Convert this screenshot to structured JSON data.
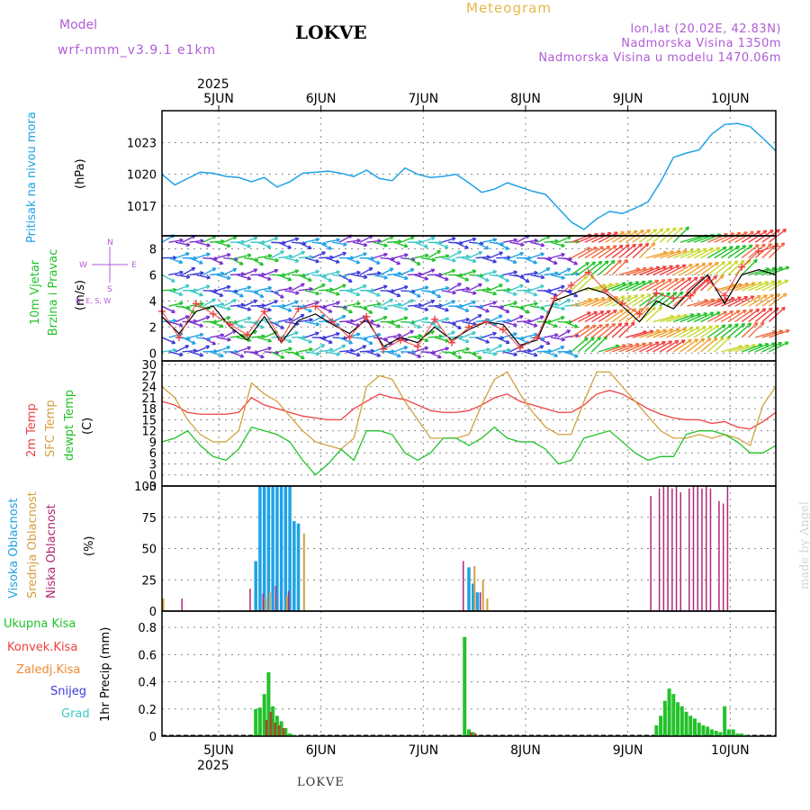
{
  "header": {
    "model_label": "Model",
    "model_value": "wrf-nmm_v3.9.1 e1km",
    "station": "LOKVE",
    "meteogram": "Meteogram",
    "coords": "lon,lat (20.02E, 42.83N)",
    "elevation": "Nadmorska Visina 1350m",
    "model_elevation": "Nadmorska Visina u modelu 1470.06m"
  },
  "footer": {
    "station": "LOKVE",
    "credit": "made by Angel"
  },
  "colors": {
    "purple": "#b05cd6",
    "blue": "#1ea2e6",
    "green": "#22c22a",
    "red": "#ee4040",
    "orange": "#f08a32",
    "tan": "#d4a040",
    "magenta": "#b0287a",
    "indigo": "#3b3bdc",
    "cyan": "#3cc8c8",
    "black": "#000000"
  },
  "chart_data": [
    {
      "type": "line",
      "panel": "pressure",
      "title": "Pritisak na nivou mora",
      "ylabel": "(hPa)",
      "x_top_labels": [
        "5JUN",
        "6JUN",
        "7JUN",
        "8JUN",
        "9JUN",
        "10JUN"
      ],
      "x_year": "2025",
      "yticks": [
        "1023",
        "1020",
        "1017"
      ],
      "ylim": [
        1014.2,
        1026
      ],
      "x": [
        0,
        3,
        6,
        9,
        12,
        15,
        18,
        21,
        24,
        27,
        30,
        33,
        36,
        39,
        42,
        45,
        48,
        51,
        54,
        57,
        60,
        63,
        66,
        69,
        72,
        75,
        78,
        81,
        84,
        87,
        90,
        93,
        96,
        99,
        102,
        105,
        108,
        111,
        114,
        117,
        120,
        123,
        126,
        129,
        132,
        135,
        138,
        141,
        144
      ],
      "series": [
        {
          "name": "Pritisak na nivou mora",
          "values": [
            1020,
            1019,
            1019.6,
            1020.2,
            1020.1,
            1019.8,
            1019.7,
            1019.3,
            1019.7,
            1018.8,
            1019.3,
            1020.1,
            1020.2,
            1020.3,
            1020.1,
            1019.8,
            1020.4,
            1019.6,
            1019.4,
            1020.6,
            1020.0,
            1019.7,
            1019.8,
            1020.0,
            1019.2,
            1018.3,
            1018.6,
            1019.2,
            1018.8,
            1018.4,
            1018.1,
            1016.8,
            1015.5,
            1014.8,
            1015.8,
            1016.5,
            1016.3,
            1016.8,
            1017.4,
            1019.3,
            1021.6,
            1022.0,
            1022.3,
            1023.8,
            1024.7,
            1024.8,
            1024.5,
            1023.4,
            1022.2
          ]
        }
      ]
    },
    {
      "type": "line",
      "panel": "wind",
      "title": "10m Vjetar Brzina i Pravac",
      "ylabel": "(m/s)",
      "compass": "N, E, S, W",
      "yticks": [
        "8",
        "6",
        "4",
        "2",
        "0"
      ],
      "ylim": [
        -0.6,
        9
      ],
      "x": [
        0,
        4,
        8,
        12,
        16,
        20,
        24,
        28,
        32,
        36,
        40,
        44,
        48,
        52,
        56,
        60,
        64,
        68,
        72,
        76,
        80,
        84,
        88,
        92,
        96,
        100,
        104,
        108,
        112,
        116,
        120,
        124,
        128,
        132,
        136,
        140,
        144
      ],
      "series": [
        {
          "name": "speed",
          "values": [
            2.8,
            1.5,
            3.2,
            3.6,
            2.0,
            1.0,
            2.8,
            0.8,
            2.5,
            3.0,
            2.2,
            1.5,
            2.6,
            0.5,
            1.2,
            0.8,
            2.0,
            1.0,
            1.8,
            2.4,
            2.2,
            0.6,
            1.0,
            4.0,
            4.5,
            5.0,
            4.6,
            3.6,
            2.4,
            4.0,
            3.4,
            4.8,
            6.0,
            3.8,
            6.0,
            6.4,
            6.0
          ]
        },
        {
          "name": "gust",
          "values": [
            3.2,
            1.2,
            3.8,
            3.0,
            2.2,
            1.4,
            3.2,
            1.0,
            3.4,
            3.6,
            2.4,
            1.2,
            2.8,
            0.3,
            1.0,
            0.5,
            2.6,
            0.8,
            2.0,
            2.4,
            1.8,
            0.4,
            1.2,
            4.2,
            5.2,
            6.2,
            4.8,
            3.8,
            3.0,
            4.6,
            4.2,
            4.4,
            5.6,
            4.4,
            6.6,
            7.8,
            8.2
          ]
        }
      ]
    },
    {
      "type": "line",
      "panel": "temperature",
      "ylabel": "(C)",
      "legend": [
        "2m Temp",
        "SFC Temp",
        "dewpt Temp"
      ],
      "yticks": [
        "30",
        "27",
        "24",
        "21",
        "18",
        "15",
        "12",
        "9",
        "6",
        "3",
        "0",
        "-3"
      ],
      "ylim": [
        -3,
        31
      ],
      "x": [
        0,
        3,
        6,
        9,
        12,
        15,
        18,
        21,
        24,
        27,
        30,
        33,
        36,
        39,
        42,
        45,
        48,
        51,
        54,
        57,
        60,
        63,
        66,
        69,
        72,
        75,
        78,
        81,
        84,
        87,
        90,
        93,
        96,
        99,
        102,
        105,
        108,
        111,
        114,
        117,
        120,
        123,
        126,
        129,
        132,
        135,
        138,
        141,
        144
      ],
      "series": [
        {
          "name": "2m Temp",
          "values": [
            20,
            19,
            17,
            16.5,
            16.5,
            16.5,
            17,
            21,
            19,
            18,
            17,
            16,
            15.5,
            15,
            15,
            18,
            20,
            22,
            21,
            20.5,
            19,
            17.5,
            17,
            17,
            17.5,
            19,
            21,
            22,
            20,
            19,
            18,
            17,
            17,
            19,
            22,
            23,
            22,
            20,
            18,
            16.5,
            15.5,
            15,
            15,
            14,
            14.5,
            13,
            12.5,
            14.5,
            17
          ]
        },
        {
          "name": "SFC Temp",
          "values": [
            24,
            21,
            15,
            11,
            9,
            9,
            12,
            25,
            22,
            20,
            16,
            12,
            9,
            8,
            7,
            10,
            24,
            27,
            26,
            20,
            15,
            10,
            10,
            10,
            11,
            19,
            26,
            28,
            22,
            17,
            13,
            11,
            11,
            20,
            28,
            28,
            24,
            20,
            16,
            12,
            10,
            10,
            11,
            10,
            11,
            10,
            8,
            19,
            24
          ]
        },
        {
          "name": "dewpt Temp",
          "values": [
            9,
            10,
            12,
            8,
            5,
            4,
            7,
            13,
            12,
            11,
            9,
            4,
            0,
            3,
            7,
            4,
            12,
            12,
            11,
            6,
            4,
            6,
            10,
            10,
            8,
            10,
            13,
            10,
            9,
            9,
            7,
            3,
            4,
            10,
            11,
            12,
            9,
            6,
            4,
            5,
            5,
            11,
            12,
            12,
            11,
            9,
            6,
            6,
            8
          ]
        }
      ]
    },
    {
      "type": "bar",
      "panel": "cloud",
      "ylabel": "(%)",
      "legend": [
        "Visoka Oblacnost",
        "Srednja Oblacnost",
        "Niska Oblacnost"
      ],
      "yticks": [
        "100",
        "75",
        "50",
        "25",
        "0"
      ],
      "ylim": [
        0,
        100
      ],
      "series": [
        {
          "name": "Visoka Oblacnost",
          "x": [
            22,
            23,
            24,
            25,
            26,
            27,
            28,
            29,
            30,
            31,
            32,
            71,
            72,
            73,
            74
          ],
          "values": [
            40,
            100,
            100,
            100,
            100,
            100,
            100,
            100,
            100,
            72,
            70,
            8,
            35,
            22,
            15
          ]
        },
        {
          "name": "Srednja Oblacnost",
          "x": [
            0,
            1,
            2,
            3,
            4,
            24,
            25,
            26,
            29,
            30,
            33,
            72,
            73,
            75,
            76
          ],
          "values": [
            10,
            6,
            5,
            7,
            5,
            10,
            15,
            8,
            12,
            8,
            62,
            5,
            36,
            25,
            10
          ]
        },
        {
          "name": "Niska Oblacnost",
          "x": [
            5,
            21,
            24,
            27,
            30,
            71,
            75,
            90,
            115,
            117,
            118,
            119,
            120,
            121,
            122,
            124,
            125,
            126,
            127,
            128,
            129,
            131,
            132,
            133,
            142
          ],
          "values": [
            10,
            18,
            14,
            20,
            16,
            40,
            15,
            8,
            92,
            98,
            100,
            100,
            98,
            100,
            95,
            98,
            100,
            100,
            98,
            100,
            98,
            88,
            86,
            100,
            8
          ]
        }
      ]
    },
    {
      "type": "bar",
      "panel": "precipitation",
      "ylabel": "1hr Precip (mm)",
      "legend": [
        "Ukupna Kisa",
        "Konvek.Kisa",
        "Zaledj.Kisa",
        "Snijeg",
        "Grad"
      ],
      "x_bottom_labels": [
        "5JUN",
        "6JUN",
        "7JUN",
        "8JUN",
        "9JUN",
        "10JUN"
      ],
      "x_year": "2025",
      "yticks": [
        "0.8",
        "0.6",
        "0.4",
        "0.2",
        "0"
      ],
      "ylim": [
        0,
        0.92
      ],
      "series": [
        {
          "name": "Ukupna Kisa",
          "x": [
            22,
            23,
            24,
            25,
            26,
            27,
            28,
            29,
            30,
            31,
            71,
            72,
            73,
            116,
            117,
            118,
            119,
            120,
            121,
            122,
            123,
            124,
            125,
            126,
            127,
            128,
            129,
            130,
            131,
            132,
            133,
            134,
            135,
            136,
            137
          ],
          "values": [
            0.2,
            0.21,
            0.31,
            0.47,
            0.22,
            0.15,
            0.11,
            0.06,
            0.02,
            0.01,
            0.73,
            0.05,
            0.03,
            0.08,
            0.15,
            0.26,
            0.35,
            0.31,
            0.25,
            0.22,
            0.18,
            0.15,
            0.13,
            0.1,
            0.08,
            0.07,
            0.05,
            0.04,
            0.03,
            0.22,
            0.05,
            0.05,
            0.02,
            0.02,
            0.01
          ]
        },
        {
          "name": "Konvek.Kisa",
          "x": [
            24,
            25,
            26,
            27,
            28,
            72,
            73
          ],
          "values": [
            0.12,
            0.18,
            0.1,
            0.08,
            0.06,
            0.03,
            0.02
          ]
        }
      ]
    }
  ]
}
